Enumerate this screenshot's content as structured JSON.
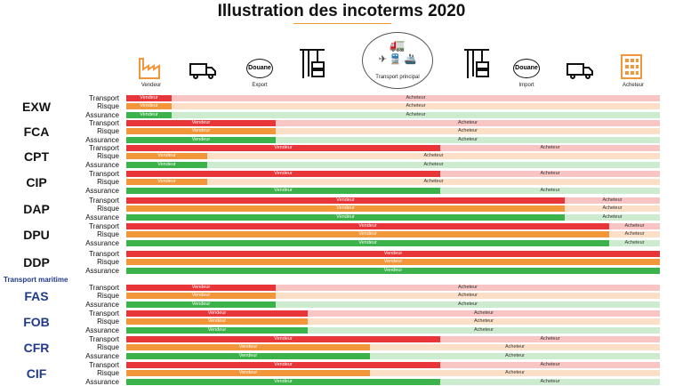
{
  "title": "Illustration des incoterms 2020",
  "stages": [
    {
      "icon": "factory-icon",
      "label": "Vendeur"
    },
    {
      "icon": "truck-icon",
      "label": ""
    },
    {
      "icon": "customs-icon",
      "badge": "Douane",
      "label": "Export"
    },
    {
      "icon": "crane-container-icon",
      "label": ""
    },
    {
      "icon": "main-transport-icon",
      "label": "Transport principal"
    },
    {
      "icon": "crane-container-icon",
      "label": ""
    },
    {
      "icon": "customs-icon",
      "badge": "Douane",
      "label": "Import"
    },
    {
      "icon": "truck-icon",
      "label": ""
    },
    {
      "icon": "building-icon",
      "label": "Acheteur"
    }
  ],
  "row_labels": [
    "Transport",
    "Risque",
    "Assurance"
  ],
  "seller_label": "Vendeur",
  "buyer_label": "Acheteur",
  "maritime_heading": "Transport maritime",
  "colors": {
    "transport": [
      "#e8353a",
      "#f8c4c4"
    ],
    "risque": [
      "#f2963a",
      "#fbdfc6"
    ],
    "assurance": [
      "#3bb24a",
      "#cdeccf"
    ],
    "maritime": "#1f3a8a"
  },
  "incoterms": [
    {
      "code": "EXW",
      "seller_share": [
        0.085,
        0.085,
        0.085
      ]
    },
    {
      "code": "FCA",
      "seller_share": [
        0.28,
        0.28,
        0.28
      ]
    },
    {
      "code": "CPT",
      "seller_share": [
        0.588,
        0.152,
        0.152
      ]
    },
    {
      "code": "CIP",
      "seller_share": [
        0.588,
        0.152,
        0.588
      ]
    },
    {
      "code": "DAP",
      "seller_share": [
        0.822,
        0.822,
        0.822
      ]
    },
    {
      "code": "DPU",
      "seller_share": [
        0.905,
        0.905,
        0.905
      ]
    },
    {
      "code": "DDP",
      "seller_share": [
        1,
        1,
        1
      ]
    },
    {
      "code": "FAS",
      "maritime": true,
      "seller_share": [
        0.28,
        0.28,
        0.28
      ]
    },
    {
      "code": "FOB",
      "maritime": true,
      "seller_share": [
        0.34,
        0.34,
        0.34
      ]
    },
    {
      "code": "CFR",
      "maritime": true,
      "seller_share": [
        0.588,
        0.457,
        0.457
      ]
    },
    {
      "code": "CIF",
      "maritime": true,
      "seller_share": [
        0.588,
        0.457,
        0.588
      ]
    }
  ]
}
